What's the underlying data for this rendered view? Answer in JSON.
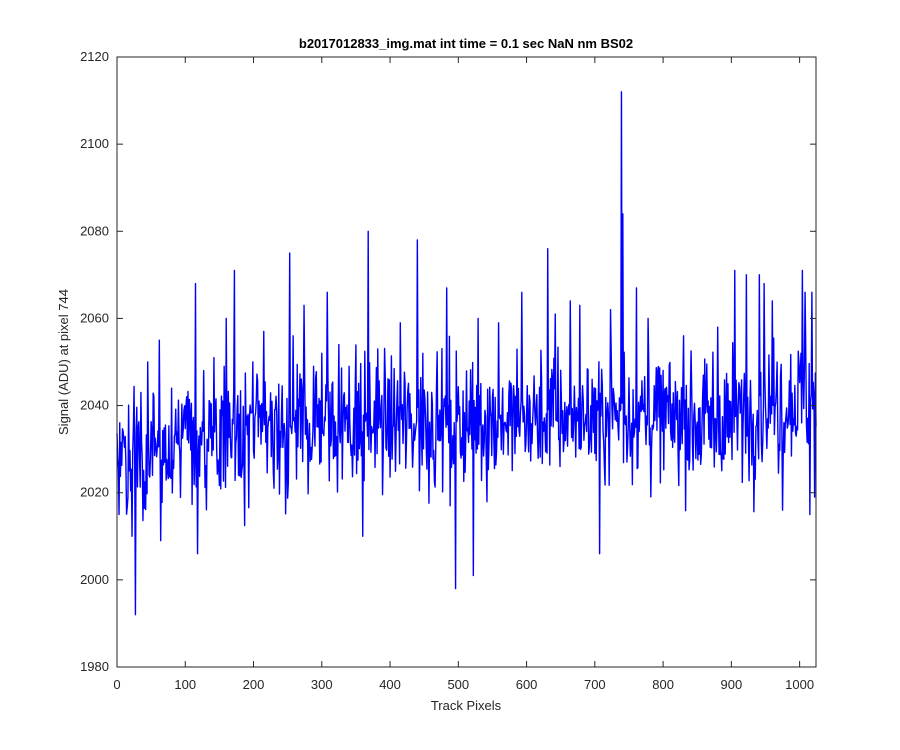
{
  "chart_data": {
    "type": "line",
    "title": "b2017012833_img.mat int time = 0.1 sec  NaN nm BS02",
    "xlabel": "Track Pixels",
    "ylabel": "Signal (ADU) at pixel 744",
    "xlim": [
      0,
      1024
    ],
    "ylim": [
      1980,
      2120
    ],
    "xticks": [
      0,
      100,
      200,
      300,
      400,
      500,
      600,
      700,
      800,
      900,
      1000
    ],
    "yticks": [
      1980,
      2000,
      2020,
      2040,
      2060,
      2080,
      2100,
      2120
    ],
    "grid": false,
    "line_color": "#0000ff",
    "series": [
      {
        "noise": {
          "start_index": 0,
          "end_index": 1024,
          "seed": 744
        },
        "trend": [
          [
            0,
            2027
          ],
          [
            150,
            2033
          ],
          [
            300,
            2036
          ],
          [
            450,
            2036
          ],
          [
            600,
            2037
          ],
          [
            750,
            2038
          ],
          [
            880,
            2036
          ],
          [
            1024,
            2043
          ]
        ],
        "spikes": [
          [
            3,
            2015
          ],
          [
            9,
            2034
          ],
          [
            22,
            2010
          ],
          [
            27,
            1992
          ],
          [
            35,
            2043
          ],
          [
            45,
            2050
          ],
          [
            62,
            2055
          ],
          [
            64,
            2009
          ],
          [
            80,
            2044
          ],
          [
            102,
            2042
          ],
          [
            115,
            2068
          ],
          [
            118,
            2006
          ],
          [
            127,
            2048
          ],
          [
            142,
            2051
          ],
          [
            160,
            2060
          ],
          [
            172,
            2071
          ],
          [
            199,
            2050
          ],
          [
            215,
            2057
          ],
          [
            253,
            2075
          ],
          [
            258,
            2056
          ],
          [
            274,
            2063
          ],
          [
            288,
            2049
          ],
          [
            300,
            2052
          ],
          [
            308,
            2066
          ],
          [
            325,
            2054
          ],
          [
            340,
            2049
          ],
          [
            360,
            2010
          ],
          [
            368,
            2080
          ],
          [
            382,
            2053
          ],
          [
            415,
            2059
          ],
          [
            440,
            2078
          ],
          [
            448,
            2052
          ],
          [
            483,
            2067
          ],
          [
            488,
            2017
          ],
          [
            496,
            1998
          ],
          [
            522,
            2001
          ],
          [
            529,
            2060
          ],
          [
            559,
            2059
          ],
          [
            593,
            2066
          ],
          [
            631,
            2076
          ],
          [
            642,
            2061
          ],
          [
            664,
            2064
          ],
          [
            678,
            2063
          ],
          [
            707,
            2006
          ],
          [
            723,
            2062
          ],
          [
            739,
            2112
          ],
          [
            741,
            2084
          ],
          [
            761,
            2067
          ],
          [
            778,
            2060
          ],
          [
            830,
            2056
          ],
          [
            880,
            2058
          ],
          [
            905,
            2071
          ],
          [
            922,
            2070
          ],
          [
            941,
            2070
          ],
          [
            948,
            2068
          ],
          [
            960,
            2064
          ],
          [
            975,
            2016
          ],
          [
            1004,
            2071
          ],
          [
            1008,
            2066
          ],
          [
            1015,
            2015
          ],
          [
            1018,
            2066
          ],
          [
            1022,
            2019
          ]
        ]
      }
    ]
  }
}
